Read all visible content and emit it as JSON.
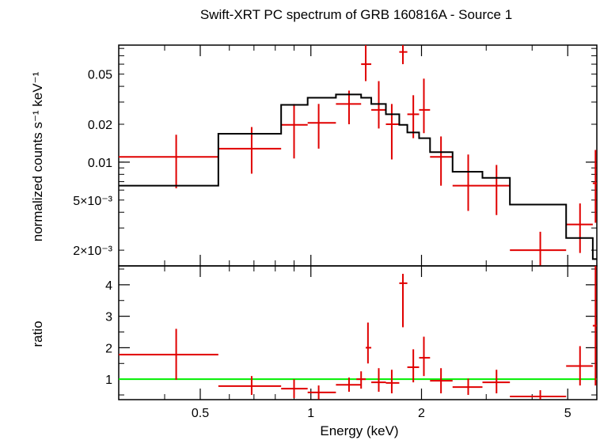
{
  "chart_data": [
    {
      "type": "scatter",
      "title": "Swift-XRT PC spectrum of GRB 160816A - Source 1",
      "ylabel": "normalized counts s⁻¹ keV⁻¹",
      "xlabel": "",
      "xscale": "log",
      "yscale": "log",
      "xlim": [
        0.3,
        6.0
      ],
      "ylim": [
        0.0015,
        0.085
      ],
      "yticks": [
        {
          "value": 0.002,
          "label": "2×10⁻³"
        },
        {
          "value": 0.005,
          "label": "5×10⁻³"
        },
        {
          "value": 0.01,
          "label": "0.01"
        },
        {
          "value": 0.02,
          "label": "0.02"
        },
        {
          "value": 0.05,
          "label": "0.05"
        }
      ],
      "series": [
        {
          "kind": "data",
          "color": "#e00000",
          "points": [
            {
              "x": 0.43,
              "xlo": 0.3,
              "xhi": 0.56,
              "y": 0.011,
              "ylo": 0.0062,
              "yhi": 0.0165
            },
            {
              "x": 0.69,
              "xlo": 0.56,
              "xhi": 0.83,
              "y": 0.0128,
              "ylo": 0.0081,
              "yhi": 0.019
            },
            {
              "x": 0.9,
              "xlo": 0.83,
              "xhi": 0.98,
              "y": 0.0198,
              "ylo": 0.0107,
              "yhi": 0.029
            },
            {
              "x": 1.05,
              "xlo": 0.98,
              "xhi": 1.17,
              "y": 0.0205,
              "ylo": 0.0128,
              "yhi": 0.029
            },
            {
              "x": 1.27,
              "xlo": 1.17,
              "xhi": 1.37,
              "y": 0.029,
              "ylo": 0.02,
              "yhi": 0.037
            },
            {
              "x": 1.41,
              "xlo": 1.37,
              "xhi": 1.46,
              "y": 0.06,
              "ylo": 0.044,
              "yhi": 0.085
            },
            {
              "x": 1.53,
              "xlo": 1.46,
              "xhi": 1.6,
              "y": 0.026,
              "ylo": 0.0185,
              "yhi": 0.044
            },
            {
              "x": 1.66,
              "xlo": 1.6,
              "xhi": 1.74,
              "y": 0.02,
              "ylo": 0.0105,
              "yhi": 0.029
            },
            {
              "x": 1.78,
              "xlo": 1.74,
              "xhi": 1.83,
              "y": 0.075,
              "ylo": 0.06,
              "yhi": 0.085
            },
            {
              "x": 1.9,
              "xlo": 1.83,
              "xhi": 1.97,
              "y": 0.024,
              "ylo": 0.0155,
              "yhi": 0.034
            },
            {
              "x": 2.03,
              "xlo": 1.97,
              "xhi": 2.11,
              "y": 0.026,
              "ylo": 0.017,
              "yhi": 0.046
            },
            {
              "x": 2.26,
              "xlo": 2.11,
              "xhi": 2.43,
              "y": 0.011,
              "ylo": 0.0065,
              "yhi": 0.016
            },
            {
              "x": 2.68,
              "xlo": 2.43,
              "xhi": 2.93,
              "y": 0.0065,
              "ylo": 0.0041,
              "yhi": 0.0115
            },
            {
              "x": 3.2,
              "xlo": 2.93,
              "xhi": 3.48,
              "y": 0.0065,
              "ylo": 0.0038,
              "yhi": 0.0095
            },
            {
              "x": 4.21,
              "xlo": 3.48,
              "xhi": 4.95,
              "y": 0.002,
              "ylo": 0.0015,
              "yhi": 0.0028
            },
            {
              "x": 5.4,
              "xlo": 4.95,
              "xhi": 5.85,
              "y": 0.0032,
              "ylo": 0.0019,
              "yhi": 0.0047
            },
            {
              "x": 5.95,
              "xlo": 5.85,
              "xhi": 6.0,
              "y": 0.0068,
              "ylo": 0.0033,
              "yhi": 0.0125
            }
          ]
        },
        {
          "kind": "model",
          "style": "step",
          "color": "#000000",
          "points": [
            {
              "x": 0.3,
              "y": 0.0065
            },
            {
              "x": 0.56,
              "y": 0.0168
            },
            {
              "x": 0.83,
              "y": 0.0285
            },
            {
              "x": 0.98,
              "y": 0.0325
            },
            {
              "x": 1.17,
              "y": 0.0345
            },
            {
              "x": 1.37,
              "y": 0.0325
            },
            {
              "x": 1.46,
              "y": 0.029
            },
            {
              "x": 1.6,
              "y": 0.024
            },
            {
              "x": 1.74,
              "y": 0.0198
            },
            {
              "x": 1.83,
              "y": 0.0172
            },
            {
              "x": 1.97,
              "y": 0.0155
            },
            {
              "x": 2.11,
              "y": 0.012
            },
            {
              "x": 2.43,
              "y": 0.0084
            },
            {
              "x": 2.93,
              "y": 0.0075
            },
            {
              "x": 3.48,
              "y": 0.0046
            },
            {
              "x": 4.95,
              "y": 0.0025
            },
            {
              "x": 5.85,
              "y": 0.0017
            }
          ],
          "x_end": 6.0
        }
      ]
    },
    {
      "type": "scatter",
      "title": "",
      "ylabel": "ratio",
      "xlabel": "Energy (keV)",
      "xscale": "log",
      "yscale": "linear",
      "xlim": [
        0.3,
        6.0
      ],
      "ylim": [
        0.35,
        4.6
      ],
      "xticks": [
        {
          "value": 0.5,
          "label": "0.5"
        },
        {
          "value": 1,
          "label": "1"
        },
        {
          "value": 2,
          "label": "2"
        },
        {
          "value": 5,
          "label": "5"
        }
      ],
      "yticks": [
        {
          "value": 1,
          "label": "1"
        },
        {
          "value": 2,
          "label": "2"
        },
        {
          "value": 3,
          "label": "3"
        },
        {
          "value": 4,
          "label": "4"
        }
      ],
      "reference_line": {
        "y": 1,
        "color": "#00ee00"
      },
      "series": [
        {
          "kind": "data",
          "color": "#e00000",
          "points": [
            {
              "x": 0.43,
              "xlo": 0.3,
              "xhi": 0.56,
              "y": 1.78,
              "ylo": 0.98,
              "yhi": 2.6
            },
            {
              "x": 0.69,
              "xlo": 0.56,
              "xhi": 0.83,
              "y": 0.78,
              "ylo": 0.5,
              "yhi": 1.1
            },
            {
              "x": 0.9,
              "xlo": 0.83,
              "xhi": 0.98,
              "y": 0.7,
              "ylo": 0.4,
              "yhi": 1.0
            },
            {
              "x": 1.05,
              "xlo": 0.98,
              "xhi": 1.17,
              "y": 0.58,
              "ylo": 0.36,
              "yhi": 0.8
            },
            {
              "x": 1.27,
              "xlo": 1.17,
              "xhi": 1.37,
              "y": 0.82,
              "ylo": 0.6,
              "yhi": 1.05
            },
            {
              "x": 1.37,
              "xlo": 1.33,
              "xhi": 1.41,
              "y": 1.0,
              "ylo": 0.7,
              "yhi": 1.25
            },
            {
              "x": 1.43,
              "xlo": 1.41,
              "xhi": 1.46,
              "y": 2.0,
              "ylo": 1.5,
              "yhi": 2.8
            },
            {
              "x": 1.53,
              "xlo": 1.46,
              "xhi": 1.6,
              "y": 0.9,
              "ylo": 0.6,
              "yhi": 1.35
            },
            {
              "x": 1.66,
              "xlo": 1.6,
              "xhi": 1.74,
              "y": 0.88,
              "ylo": 0.55,
              "yhi": 1.3
            },
            {
              "x": 1.78,
              "xlo": 1.74,
              "xhi": 1.83,
              "y": 4.05,
              "ylo": 2.65,
              "yhi": 4.35
            },
            {
              "x": 1.9,
              "xlo": 1.83,
              "xhi": 1.97,
              "y": 1.38,
              "ylo": 0.9,
              "yhi": 1.95
            },
            {
              "x": 2.03,
              "xlo": 1.97,
              "xhi": 2.11,
              "y": 1.68,
              "ylo": 1.1,
              "yhi": 2.35
            },
            {
              "x": 2.26,
              "xlo": 2.11,
              "xhi": 2.43,
              "y": 0.95,
              "ylo": 0.55,
              "yhi": 1.35
            },
            {
              "x": 2.68,
              "xlo": 2.43,
              "xhi": 2.93,
              "y": 0.75,
              "ylo": 0.5,
              "yhi": 1.02
            },
            {
              "x": 3.2,
              "xlo": 2.93,
              "xhi": 3.48,
              "y": 0.9,
              "ylo": 0.55,
              "yhi": 1.3
            },
            {
              "x": 4.21,
              "xlo": 3.48,
              "xhi": 4.95,
              "y": 0.45,
              "ylo": 0.36,
              "yhi": 0.65
            },
            {
              "x": 5.4,
              "xlo": 4.95,
              "xhi": 5.85,
              "y": 1.42,
              "ylo": 0.8,
              "yhi": 2.05
            },
            {
              "x": 5.95,
              "xlo": 5.85,
              "xhi": 6.0,
              "y": 2.7,
              "ylo": 0.8,
              "yhi": 4.6
            }
          ]
        }
      ]
    }
  ]
}
